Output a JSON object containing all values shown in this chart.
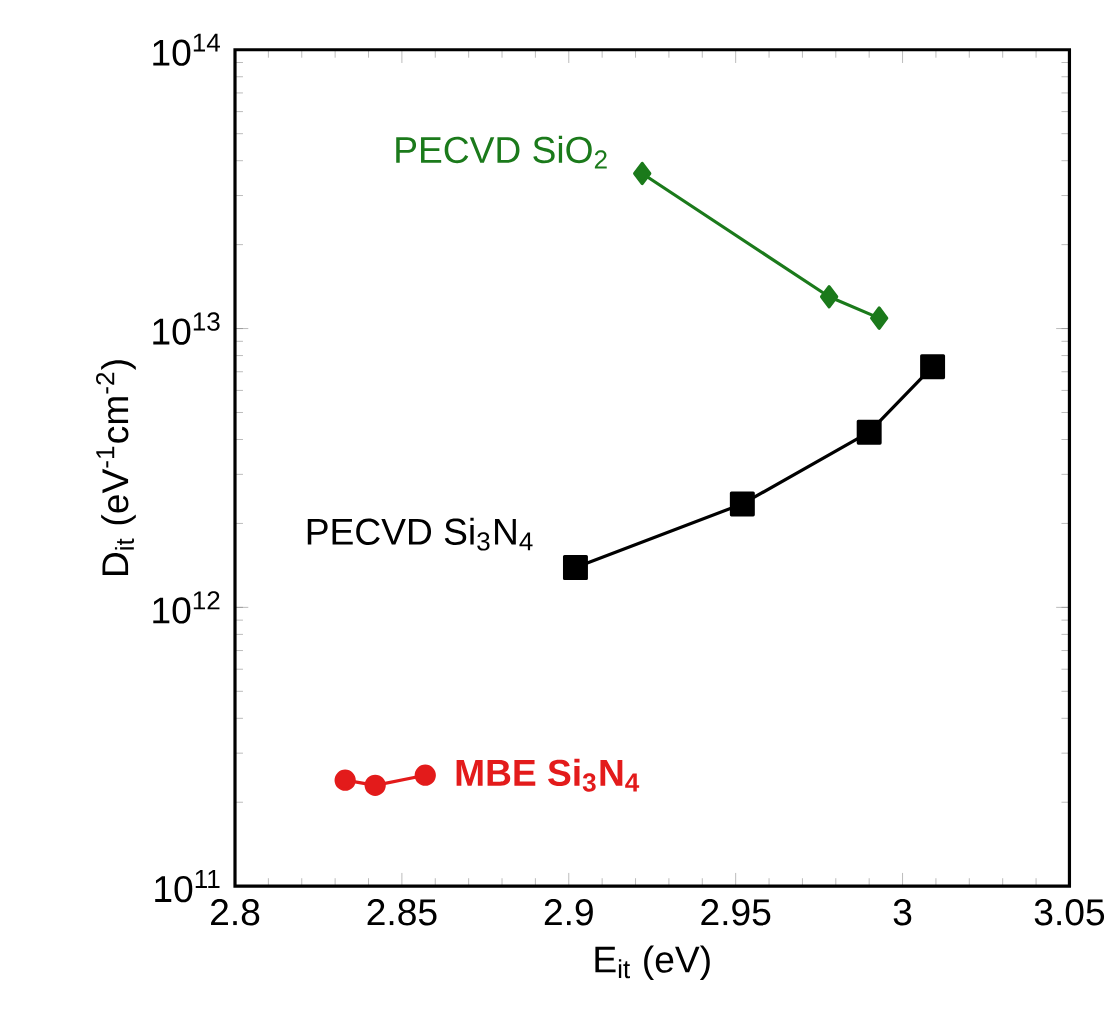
{
  "chart_data": {
    "type": "line",
    "xlabel": "E$_{it}$ (eV)",
    "ylabel": "D$_{it}$ (eV$^{-1}$cm$^{-2}$)",
    "log": "y",
    "xlim": [
      2.8,
      3.05
    ],
    "ylim": [
      100000000000.0,
      100000000000000.0
    ],
    "xticks": [
      2.8,
      2.85,
      2.9,
      2.95,
      3,
      3.05
    ],
    "yticks": [
      {
        "value": 100000000000.0,
        "label": "10$^{11}$"
      },
      {
        "value": 1000000000000.0,
        "label": "10$^{12}$"
      },
      {
        "value": 10000000000000.0,
        "label": "10$^{13}$"
      },
      {
        "value": 100000000000000.0,
        "label": "10$^{14}$"
      }
    ],
    "grid": false,
    "series": [
      {
        "name": "PECVD SiO$_{2}$",
        "color": "#1b7a1b",
        "marker": "diamond",
        "x": [
          2.922,
          2.978,
          2.993
        ],
        "values": [
          36000000000000.0,
          13000000000000.0,
          10900000000000.0
        ]
      },
      {
        "name": "PECVD Si$_{3}$N$_{4}$",
        "color": "#000000",
        "marker": "square",
        "x": [
          2.902,
          2.952,
          2.99,
          3.009
        ],
        "values": [
          1390000000000.0,
          2350000000000.0,
          4250000000000.0,
          7300000000000.0
        ]
      },
      {
        "name": "**MBE Si$_{3}$N$_{4}$**",
        "color": "#e31b1b",
        "marker": "circle",
        "x": [
          2.833,
          2.842,
          2.857
        ],
        "values": [
          240000000000.0,
          230000000000.0,
          250000000000.0
        ]
      }
    ]
  }
}
